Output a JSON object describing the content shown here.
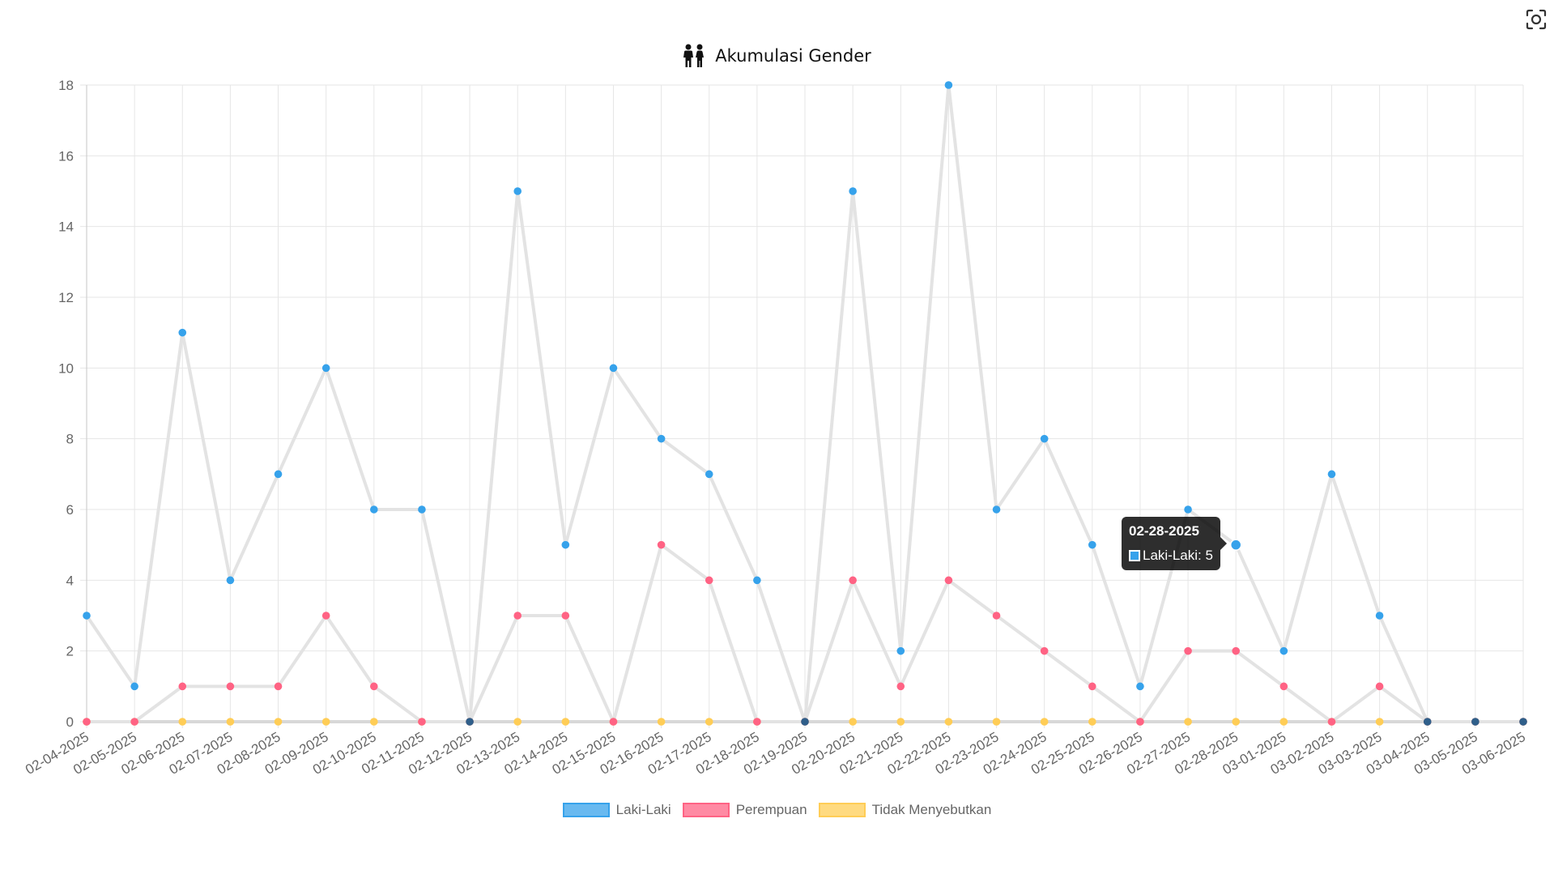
{
  "colors": {
    "line": "#e3e3e3",
    "grid": "#e6e6e6",
    "laki": "#36a2eb",
    "perempuan": "#ff6384",
    "tidak": "#ffcd56",
    "dark_point": "#2f5f8a"
  },
  "icons": {
    "title_icon": "restroom-icon",
    "screenshot_icon": "screenshot-icon"
  },
  "chart_data": {
    "type": "line",
    "title": "Akumulasi Gender",
    "ylim": [
      0,
      18
    ],
    "yticks": [
      "0",
      "2",
      "4",
      "6",
      "8",
      "10",
      "12",
      "14",
      "16",
      "18"
    ],
    "grid": true,
    "legend_position": "bottom",
    "categories": [
      "02-04-2025",
      "02-05-2025",
      "02-06-2025",
      "02-07-2025",
      "02-08-2025",
      "02-09-2025",
      "02-10-2025",
      "02-11-2025",
      "02-12-2025",
      "02-13-2025",
      "02-14-2025",
      "02-15-2025",
      "02-16-2025",
      "02-17-2025",
      "02-18-2025",
      "02-19-2025",
      "02-20-2025",
      "02-21-2025",
      "02-22-2025",
      "02-23-2025",
      "02-24-2025",
      "02-25-2025",
      "02-26-2025",
      "02-27-2025",
      "02-28-2025",
      "03-01-2025",
      "03-02-2025",
      "03-03-2025",
      "03-04-2025",
      "03-05-2025",
      "03-06-2025"
    ],
    "series": [
      {
        "name": "Laki-Laki",
        "values": [
          3,
          1,
          11,
          4,
          7,
          10,
          6,
          6,
          0,
          15,
          5,
          10,
          8,
          7,
          4,
          0,
          15,
          2,
          18,
          6,
          8,
          5,
          1,
          6,
          5,
          2,
          7,
          3,
          0,
          0,
          0
        ]
      },
      {
        "name": "Perempuan",
        "values": [
          0,
          0,
          1,
          1,
          1,
          3,
          1,
          0,
          0,
          3,
          3,
          0,
          5,
          4,
          0,
          0,
          4,
          1,
          4,
          3,
          2,
          1,
          0,
          2,
          2,
          1,
          0,
          1,
          0,
          0,
          0
        ]
      },
      {
        "name": "Tidak Menyebutkan",
        "values": [
          0,
          0,
          0,
          0,
          0,
          0,
          0,
          0,
          0,
          0,
          0,
          0,
          0,
          0,
          0,
          0,
          0,
          0,
          0,
          0,
          0,
          0,
          0,
          0,
          0,
          0,
          0,
          0,
          0,
          0,
          0
        ]
      }
    ]
  },
  "tooltip": {
    "title": "02-28-2025",
    "label": "Laki-Laki: 5",
    "category_index": 24
  }
}
